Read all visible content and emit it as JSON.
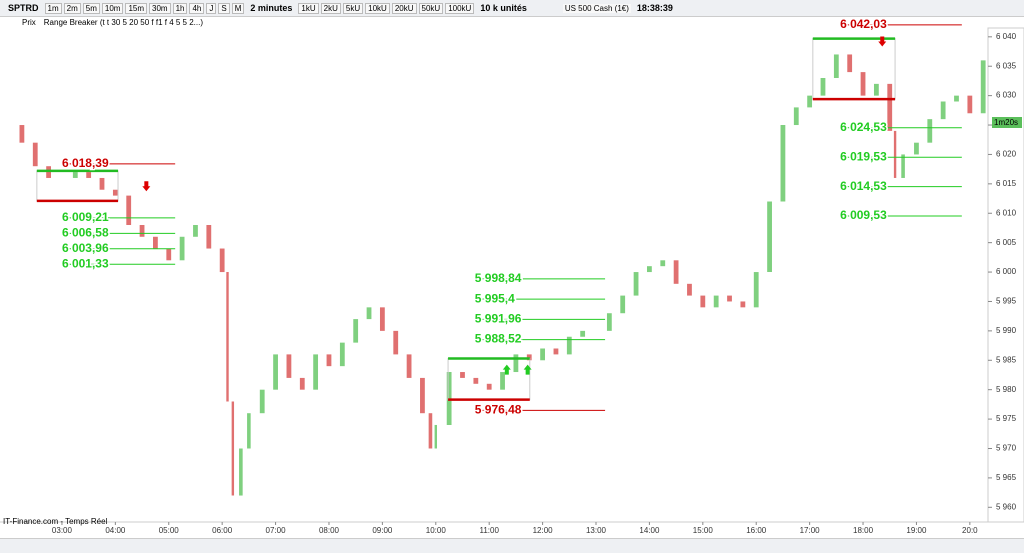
{
  "toolbar": {
    "symbol": "SPTRD",
    "periods": [
      "1m",
      "2m",
      "5m",
      "10m",
      "15m",
      "30m",
      "1h",
      "4h",
      "J",
      "S",
      "M"
    ],
    "period_select": "2 minutes",
    "units": [
      "1kU",
      "2kU",
      "5kU",
      "10kU",
      "20kU",
      "50kU",
      "100kU"
    ],
    "unit_select": "10 k unités",
    "instrument": "US 500 Cash (1€)",
    "clock": "18:38:39"
  },
  "indicators": [
    "Prix",
    "Range Breaker (t t 30 5 20 50 f f1 f 4 5 5 2...)"
  ],
  "countdown": "1m20s",
  "footer": "IT-Finance.com - Temps Réel",
  "chart_data": {
    "type": "bar-path",
    "x": [
      2.0,
      2.25,
      2.5,
      2.75,
      3.0,
      3.25,
      3.5,
      3.75,
      4.0,
      4.25,
      4.5,
      4.75,
      5.0,
      5.25,
      5.5,
      5.75,
      6.0,
      6.1,
      6.2,
      6.35,
      6.5,
      6.75,
      7.0,
      7.25,
      7.5,
      7.75,
      8.0,
      8.25,
      8.5,
      8.75,
      9.0,
      9.25,
      9.5,
      9.75,
      9.9,
      10.0,
      10.25,
      10.5,
      10.75,
      11.0,
      11.25,
      11.5,
      11.75,
      12.0,
      12.25,
      12.5,
      12.75,
      13.0,
      13.25,
      13.5,
      13.75,
      14.0,
      14.25,
      14.5,
      14.75,
      15.0,
      15.25,
      15.5,
      15.75,
      16.0,
      16.25,
      16.5,
      16.75,
      17.0,
      17.25,
      17.5,
      17.75,
      18.0,
      18.25,
      18.5,
      18.6,
      18.75,
      19.0,
      19.25,
      19.5,
      19.75,
      20.0,
      20.25
    ],
    "series": [
      {
        "name": "Prix",
        "up_color": "#7fd07f",
        "down_color": "#e07070",
        "values": [
          6025,
          6022,
          6018,
          6016,
          6016,
          6017,
          6016,
          6014,
          6013,
          6008,
          6006,
          6004,
          6002,
          6006,
          6008,
          6004,
          6000,
          5978,
          5962,
          5970,
          5976,
          5980,
          5986,
          5982,
          5980,
          5986,
          5984,
          5988,
          5992,
          5994,
          5990,
          5986,
          5982,
          5976,
          5970,
          5974,
          5983,
          5982,
          5981,
          5980,
          5983,
          5986,
          5985,
          5987,
          5986,
          5989,
          5990,
          5990,
          5993,
          5996,
          6000,
          6001,
          6002,
          5998,
          5996,
          5994,
          5996,
          5995,
          5994,
          6000,
          6012,
          6025,
          6028,
          6030,
          6033,
          6037,
          6034,
          6030,
          6032,
          6024,
          6016,
          6020,
          6022,
          6026,
          6029,
          6030,
          6027,
          6036
        ]
      }
    ],
    "xlim": [
      1.84,
      20.34
    ],
    "ylim": [
      5957.5,
      6041.5
    ],
    "xticks": [
      {
        "value": 3,
        "label": "03:00"
      },
      {
        "value": 4,
        "label": "04:00"
      },
      {
        "value": 5,
        "label": "05:00"
      },
      {
        "value": 6,
        "label": "06:00"
      },
      {
        "value": 7,
        "label": "07:00"
      },
      {
        "value": 8,
        "label": "08:00"
      },
      {
        "value": 9,
        "label": "09:00"
      },
      {
        "value": 10,
        "label": "10:00"
      },
      {
        "value": 11,
        "label": "11:00"
      },
      {
        "value": 12,
        "label": "12:00"
      },
      {
        "value": 13,
        "label": "13:00"
      },
      {
        "value": 14,
        "label": "14:00"
      },
      {
        "value": 15,
        "label": "15:00"
      },
      {
        "value": 16,
        "label": "16:00"
      },
      {
        "value": 17,
        "label": "17:00"
      },
      {
        "value": 18,
        "label": "18:00"
      },
      {
        "value": 19,
        "label": "19:00"
      },
      {
        "value": 20,
        "label": "20:0"
      }
    ],
    "yticks": [
      {
        "value": 5960,
        "label": "5 960"
      },
      {
        "value": 5965,
        "label": "5 965"
      },
      {
        "value": 5970,
        "label": "5 970"
      },
      {
        "value": 5975,
        "label": "5 975"
      },
      {
        "value": 5980,
        "label": "5 980"
      },
      {
        "value": 5985,
        "label": "5 985"
      },
      {
        "value": 5990,
        "label": "5 990"
      },
      {
        "value": 5995,
        "label": "5 995"
      },
      {
        "value": 6000,
        "label": "6 000"
      },
      {
        "value": 6005,
        "label": "6 005"
      },
      {
        "value": 6010,
        "label": "6 010"
      },
      {
        "value": 6015,
        "label": "6 015"
      },
      {
        "value": 6020,
        "label": "6 020"
      },
      {
        "value": 6025,
        "label": "6 025"
      },
      {
        "value": 6030,
        "label": "6 030"
      },
      {
        "value": 6035,
        "label": "6 035"
      },
      {
        "value": 6040,
        "label": "6 040"
      }
    ],
    "levels": [
      {
        "label": "6 018,39",
        "value": 6018.39,
        "color": "#cc0000",
        "x": [
          3.0,
          5.12
        ]
      },
      {
        "label": "6 009,21",
        "value": 6009.21,
        "color": "#22cc22",
        "x": [
          3.0,
          5.12
        ]
      },
      {
        "label": "6 006,58",
        "value": 6006.58,
        "color": "#22cc22",
        "x": [
          3.0,
          5.12
        ]
      },
      {
        "label": "6 003,96",
        "value": 6003.96,
        "color": "#22cc22",
        "x": [
          3.0,
          5.12
        ]
      },
      {
        "label": "6 001,33",
        "value": 6001.33,
        "color": "#22cc22",
        "x": [
          3.0,
          5.12
        ]
      },
      {
        "label": "5 998,84",
        "value": 5998.84,
        "color": "#22cc22",
        "x": [
          10.73,
          13.17
        ]
      },
      {
        "label": "5 995,4",
        "value": 5995.4,
        "color": "#22cc22",
        "x": [
          10.73,
          13.17
        ]
      },
      {
        "label": "5 991,96",
        "value": 5991.96,
        "color": "#22cc22",
        "x": [
          10.73,
          13.17
        ]
      },
      {
        "label": "5 988,52",
        "value": 5988.52,
        "color": "#22cc22",
        "x": [
          10.73,
          13.17
        ]
      },
      {
        "label": "5 976,48",
        "value": 5976.48,
        "color": "#cc0000",
        "x": [
          10.73,
          13.17
        ]
      },
      {
        "label": "6 042,03",
        "value": 6042.03,
        "color": "#cc0000",
        "x": [
          17.57,
          19.85
        ]
      },
      {
        "label": "6 024,53",
        "value": 6024.53,
        "color": "#22cc22",
        "x": [
          17.57,
          19.85
        ]
      },
      {
        "label": "6 019,53",
        "value": 6019.53,
        "color": "#22cc22",
        "x": [
          17.57,
          19.85
        ]
      },
      {
        "label": "6 014,53",
        "value": 6014.53,
        "color": "#22cc22",
        "x": [
          17.57,
          19.85
        ]
      },
      {
        "label": "6 009,53",
        "value": 6009.53,
        "color": "#22cc22",
        "x": [
          17.57,
          19.85
        ]
      }
    ],
    "boxes": [
      {
        "x": [
          2.53,
          4.05
        ],
        "top": 6017.2,
        "bottom": 6012.1
      },
      {
        "x": [
          10.23,
          11.76
        ],
        "top": 5985.3,
        "bottom": 5978.3
      },
      {
        "x": [
          17.06,
          18.6
        ],
        "top": 6039.7,
        "bottom": 6029.4
      }
    ],
    "signals": [
      {
        "x": 4.58,
        "y": 6014.6,
        "dir": "down",
        "color": "#dd0000"
      },
      {
        "x": 11.33,
        "y": 5983.4,
        "dir": "up",
        "color": "#22cc22"
      },
      {
        "x": 11.72,
        "y": 5983.4,
        "dir": "up",
        "color": "#22cc22"
      },
      {
        "x": 18.36,
        "y": 6039.2,
        "dir": "down",
        "color": "#dd0000"
      }
    ]
  }
}
